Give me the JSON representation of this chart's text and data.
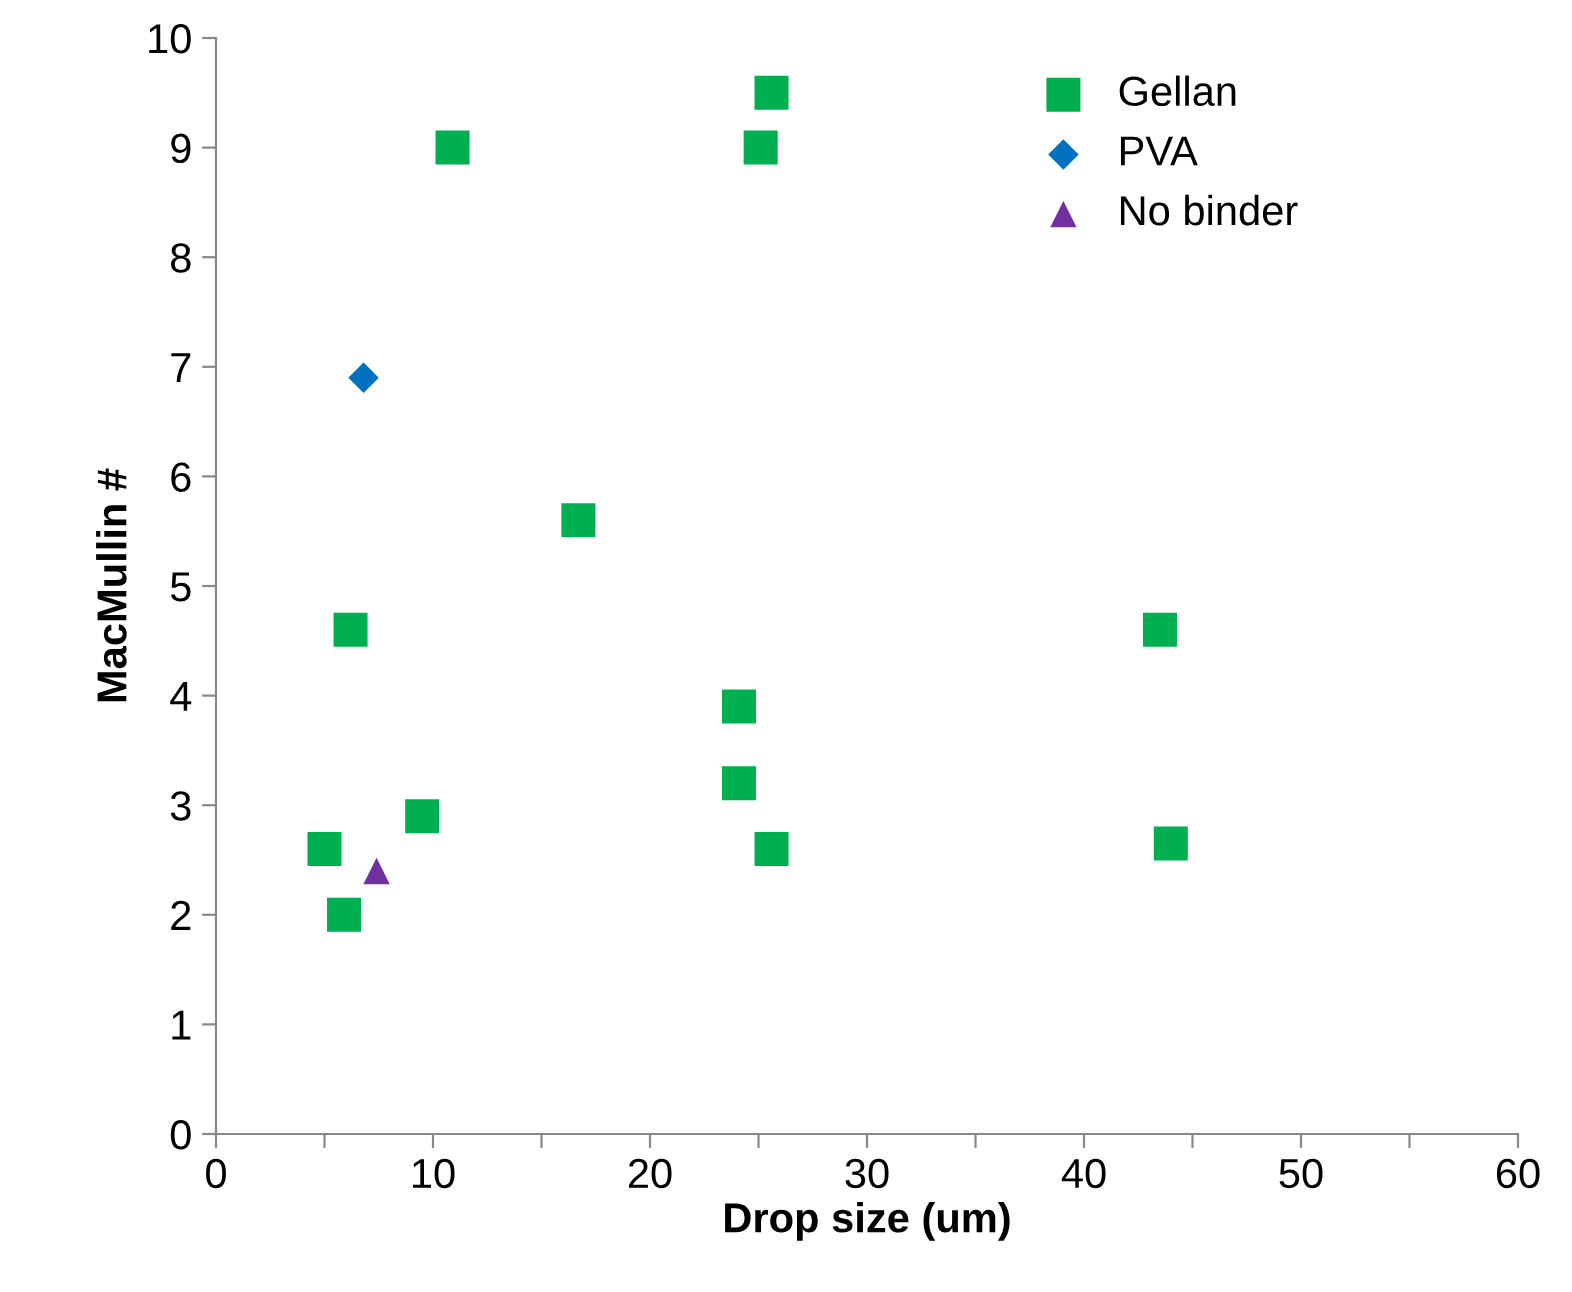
{
  "chart_data": {
    "type": "scatter",
    "xlabel": "Drop size (um)",
    "ylabel": "MacMullin #",
    "xlim": [
      0,
      60
    ],
    "ylim": [
      0,
      10
    ],
    "xticks": [
      0,
      {
        "value": 5,
        "label": null
      },
      10,
      {
        "value": 15,
        "label": null
      },
      20,
      {
        "value": 25,
        "label": null
      },
      30,
      {
        "value": 35,
        "label": null
      },
      40,
      {
        "value": 45,
        "label": null
      },
      50,
      {
        "value": 55,
        "label": null
      },
      60
    ],
    "yticks": [
      0,
      1,
      2,
      3,
      4,
      5,
      6,
      7,
      8,
      9,
      10
    ],
    "grid": false,
    "legend": "top right",
    "series": [
      {
        "name": "Gellan",
        "color": "#00b050",
        "marker": "square",
        "x": [
          10.9,
          25.6,
          25.1,
          16.7,
          6.2,
          43.5,
          24.1,
          24.1,
          9.5,
          5.0,
          25.6,
          44.0,
          5.9
        ],
        "values": [
          9.0,
          9.5,
          9.0,
          5.6,
          4.6,
          4.6,
          3.9,
          3.2,
          2.9,
          2.6,
          2.6,
          2.65,
          2.0
        ]
      },
      {
        "name": "PVA",
        "color": "#0070c0",
        "marker": "diamond",
        "x": [
          6.8
        ],
        "values": [
          6.9
        ]
      },
      {
        "name": "No binder",
        "color": "#7030a0",
        "marker": "triangle",
        "x": [
          7.4
        ],
        "values": [
          2.4
        ]
      }
    ]
  }
}
